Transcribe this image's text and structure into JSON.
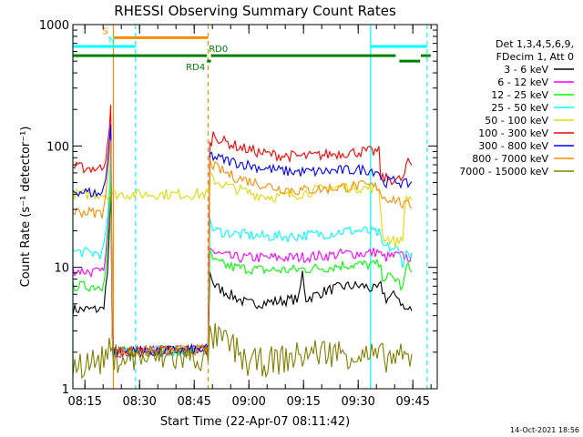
{
  "chart_data": {
    "type": "line",
    "title": "RHESSI Observing Summary Count Rates",
    "xlabel": "Start Time (22-Apr-07 08:11:42)",
    "ylabel": "Count Rate (s⁻¹ detector⁻¹)",
    "yscale": "log",
    "ylim": [
      1,
      1000
    ],
    "xlim": [
      0,
      100
    ],
    "x_unit": "minutes after 08:11:42",
    "yticks": [
      {
        "value": 1,
        "label": "1"
      },
      {
        "value": 10,
        "label": "10"
      },
      {
        "value": 100,
        "label": "100"
      },
      {
        "value": 1000,
        "label": "1000"
      }
    ],
    "xticks": [
      {
        "value": 3.3,
        "label": "08:15"
      },
      {
        "value": 18.3,
        "label": "08:30"
      },
      {
        "value": 33.3,
        "label": "08:45"
      },
      {
        "value": 48.3,
        "label": "09:00"
      },
      {
        "value": 63.3,
        "label": "09:15"
      },
      {
        "value": 78.3,
        "label": "09:30"
      },
      {
        "value": 93.3,
        "label": "09:45"
      }
    ],
    "legend": {
      "placement": "right",
      "header": [
        "Det 1,3,4,5,6,9,",
        "FDecim 1, Att 0"
      ]
    },
    "series": [
      {
        "name": "3 - 6 keV",
        "color": "#000000",
        "points": [
          [
            0,
            4.5
          ],
          [
            8,
            4.5
          ],
          [
            8.5,
            5
          ],
          [
            9.5,
            9
          ],
          [
            10,
            18
          ],
          [
            10.4,
            45
          ],
          [
            10.8,
            3
          ],
          [
            11.1,
            2
          ],
          [
            37.1,
            2.1
          ],
          [
            37.6,
            9
          ],
          [
            39,
            7
          ],
          [
            43,
            6
          ],
          [
            48,
            5
          ],
          [
            55,
            5.2
          ],
          [
            62,
            5.5
          ],
          [
            63,
            9
          ],
          [
            64,
            5.5
          ],
          [
            70,
            6.5
          ],
          [
            75,
            7
          ],
          [
            80,
            7
          ],
          [
            83,
            6.5
          ],
          [
            84.5,
            7
          ],
          [
            86,
            5.5
          ],
          [
            89,
            6
          ],
          [
            91,
            4.5
          ],
          [
            93,
            4.5
          ]
        ]
      },
      {
        "name": "6 - 12 keV",
        "color": "#ff00ff",
        "points": [
          [
            0,
            9.5
          ],
          [
            8,
            9
          ],
          [
            9,
            12
          ],
          [
            10,
            30
          ],
          [
            10.4,
            80
          ],
          [
            10.8,
            3
          ],
          [
            11.1,
            2
          ],
          [
            37.1,
            2.1
          ],
          [
            37.6,
            15
          ],
          [
            39,
            13
          ],
          [
            44,
            12
          ],
          [
            52,
            12
          ],
          [
            60,
            12
          ],
          [
            70,
            12.5
          ],
          [
            75,
            13
          ],
          [
            80,
            13
          ],
          [
            84,
            13.5
          ],
          [
            85,
            12
          ],
          [
            89,
            12.5
          ],
          [
            93,
            12
          ]
        ]
      },
      {
        "name": "12 - 25 keV",
        "color": "#00ff00",
        "points": [
          [
            0,
            7
          ],
          [
            8,
            7
          ],
          [
            9,
            10
          ],
          [
            10,
            25
          ],
          [
            10.4,
            60
          ],
          [
            10.8,
            3
          ],
          [
            11.1,
            2
          ],
          [
            37.1,
            2.1
          ],
          [
            37.6,
            13
          ],
          [
            39,
            11
          ],
          [
            44,
            10
          ],
          [
            52,
            9.5
          ],
          [
            60,
            9.5
          ],
          [
            70,
            10
          ],
          [
            75,
            10.5
          ],
          [
            80,
            10.5
          ],
          [
            84,
            10.5
          ],
          [
            85,
            8.5
          ],
          [
            89,
            8
          ],
          [
            90.5,
            6.5
          ],
          [
            91.5,
            10
          ],
          [
            93,
            10
          ]
        ]
      },
      {
        "name": "25 - 50 keV",
        "color": "#00ffff",
        "points": [
          [
            0,
            13.5
          ],
          [
            8,
            13
          ],
          [
            9,
            18
          ],
          [
            10,
            40
          ],
          [
            10.4,
            90
          ],
          [
            10.8,
            3
          ],
          [
            11.1,
            2
          ],
          [
            37.1,
            2.1
          ],
          [
            37.6,
            23
          ],
          [
            39,
            20
          ],
          [
            44,
            19
          ],
          [
            52,
            18
          ],
          [
            60,
            18
          ],
          [
            70,
            19
          ],
          [
            75,
            20
          ],
          [
            80,
            20
          ],
          [
            84,
            19
          ],
          [
            85,
            15
          ],
          [
            89,
            14
          ],
          [
            90.5,
            11
          ],
          [
            91.5,
            13
          ],
          [
            93,
            13
          ]
        ]
      },
      {
        "name": "50 - 100 keV",
        "color": "#dddd00",
        "points": [
          [
            0,
            40
          ],
          [
            37.1,
            40
          ],
          [
            37.6,
            55
          ],
          [
            40,
            50
          ],
          [
            44,
            45
          ],
          [
            50,
            40
          ],
          [
            55,
            38
          ],
          [
            60,
            39
          ],
          [
            65,
            42
          ],
          [
            70,
            45
          ],
          [
            75,
            46
          ],
          [
            80,
            45
          ],
          [
            84,
            44
          ],
          [
            84.5,
            30
          ],
          [
            85,
            18
          ],
          [
            89,
            16
          ],
          [
            90.5,
            18
          ],
          [
            91.5,
            38
          ],
          [
            93,
            37
          ]
        ]
      },
      {
        "name": "100 - 300 keV",
        "color": "#ff0000",
        "points": [
          [
            0,
            67
          ],
          [
            8,
            65
          ],
          [
            9,
            80
          ],
          [
            10,
            150
          ],
          [
            10.4,
            200
          ],
          [
            10.8,
            3
          ],
          [
            11.1,
            2
          ],
          [
            37.1,
            2.1
          ],
          [
            37.6,
            100
          ],
          [
            38.5,
            125
          ],
          [
            41,
            110
          ],
          [
            46,
            97
          ],
          [
            52,
            87
          ],
          [
            58,
            83
          ],
          [
            64,
            82
          ],
          [
            70,
            85
          ],
          [
            75,
            88
          ],
          [
            80,
            90
          ],
          [
            84,
            90
          ],
          [
            84.5,
            55
          ],
          [
            89,
            52
          ],
          [
            91,
            55
          ],
          [
            91.5,
            72
          ],
          [
            93,
            70
          ]
        ]
      },
      {
        "name": "300 - 800 keV",
        "color": "#0000ff",
        "points": [
          [
            0,
            43
          ],
          [
            8,
            40
          ],
          [
            9,
            55
          ],
          [
            10,
            110
          ],
          [
            10.4,
            150
          ],
          [
            10.8,
            3
          ],
          [
            11.1,
            2
          ],
          [
            37.1,
            2.1
          ],
          [
            37.6,
            85
          ],
          [
            39,
            80
          ],
          [
            45,
            73
          ],
          [
            52,
            66
          ],
          [
            58,
            62
          ],
          [
            63,
            61
          ],
          [
            70,
            62
          ],
          [
            75,
            63
          ],
          [
            80,
            64
          ],
          [
            84,
            62
          ],
          [
            85,
            50
          ],
          [
            89,
            52
          ],
          [
            91,
            48
          ],
          [
            93,
            50
          ]
        ]
      },
      {
        "name": "800 - 7000 keV",
        "color": "#ff8c00",
        "points": [
          [
            0,
            29
          ],
          [
            8,
            28
          ],
          [
            9,
            38
          ],
          [
            10,
            80
          ],
          [
            10.4,
            120
          ],
          [
            10.8,
            3
          ],
          [
            11.1,
            2
          ],
          [
            37.1,
            2.1
          ],
          [
            37.6,
            75
          ],
          [
            39,
            67
          ],
          [
            44,
            56
          ],
          [
            50,
            50
          ],
          [
            56,
            45
          ],
          [
            62,
            43
          ],
          [
            68,
            44
          ],
          [
            74,
            46
          ],
          [
            80,
            47
          ],
          [
            84,
            46
          ],
          [
            85,
            38
          ],
          [
            89,
            36
          ],
          [
            91,
            32
          ],
          [
            93,
            33
          ]
        ]
      },
      {
        "name": "7000 - 15000 keV",
        "color": "#808000",
        "points": [
          [
            0,
            1.6
          ],
          [
            8,
            1.7
          ],
          [
            9,
            1.9
          ],
          [
            10,
            2
          ],
          [
            10.8,
            1.8
          ],
          [
            37.1,
            1.8
          ],
          [
            37.6,
            2.7
          ],
          [
            40,
            2.6
          ],
          [
            44,
            2.2
          ],
          [
            48,
            1.6
          ],
          [
            55,
            1.7
          ],
          [
            60,
            1.8
          ],
          [
            66,
            2
          ],
          [
            72,
            2
          ],
          [
            78,
            1.9
          ],
          [
            84,
            1.8
          ],
          [
            89,
            1.8
          ],
          [
            93,
            1.7
          ]
        ]
      }
    ],
    "markers": {
      "vertical_lines": [
        {
          "x": 0,
          "color": "#00ffff",
          "style": "solid"
        },
        {
          "x": 11.1,
          "color": "#ff8c00",
          "style": "solid"
        },
        {
          "x": 17.2,
          "color": "#00ffff",
          "style": "dashed"
        },
        {
          "x": 37.1,
          "color": "#ff8c00",
          "style": "dashed"
        },
        {
          "x": 81.7,
          "color": "#00ffff",
          "style": "solid"
        },
        {
          "x": 97.2,
          "color": "#00ffff",
          "style": "dashed"
        }
      ],
      "segments": [
        {
          "label": "S",
          "color": "#ff8c00",
          "y": 780,
          "x_start": 11.1,
          "x_end": 37.1
        },
        {
          "label": "N",
          "color": "#00ffff",
          "y": 660,
          "x_start": 0,
          "x_end": 17.2
        },
        {
          "label": "",
          "color": "#00ffff",
          "y": 660,
          "x_start": 81.7,
          "x_end": 97.2
        },
        {
          "label": "RD4",
          "color": "#008000",
          "y": 500,
          "x_start": 36.8,
          "x_end": 37.9
        },
        {
          "label": "RD0",
          "color": "#008000",
          "y": 555,
          "x_start": 0,
          "x_end": 36.8
        },
        {
          "label": "",
          "color": "#008000",
          "y": 555,
          "x_start": 37.9,
          "x_end": 88.6
        },
        {
          "label": "",
          "color": "#008000",
          "y": 500,
          "x_start": 89.6,
          "x_end": 95.3
        },
        {
          "label": "",
          "color": "#008000",
          "y": 555,
          "x_start": 95.5,
          "x_end": 98.2
        }
      ]
    },
    "footer_date": "14-Oct-2021 18:56"
  }
}
